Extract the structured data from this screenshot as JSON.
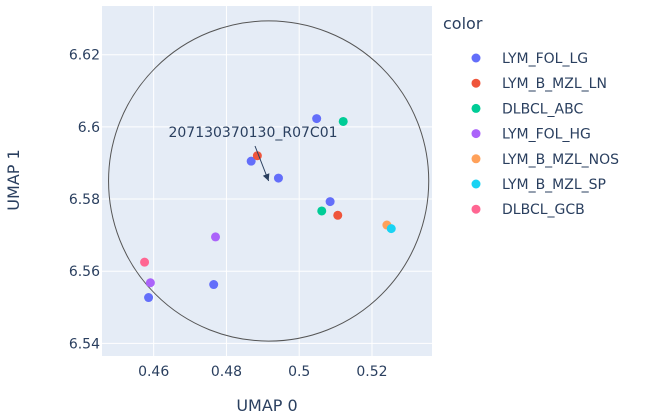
{
  "chart_data": {
    "type": "scatter",
    "xlabel": "UMAP 0",
    "ylabel": "UMAP 1",
    "xlim": [
      0.4458,
      0.5365
    ],
    "ylim": [
      6.5365,
      6.6335
    ],
    "xticks": [
      0.46,
      0.48,
      0.5,
      0.52
    ],
    "xtick_labels": [
      "0.46",
      "0.48",
      "0.5",
      "0.52"
    ],
    "yticks": [
      6.54,
      6.56,
      6.58,
      6.6,
      6.62
    ],
    "ytick_labels": [
      "6.54",
      "6.56",
      "6.58",
      "6.6",
      "6.62"
    ],
    "grid": true,
    "legend_title": "color",
    "legend_position": "right",
    "series": [
      {
        "name": "LYM_FOL_LG",
        "color": "#636efa",
        "points": [
          [
            0.4868,
            6.5905
          ],
          [
            0.4943,
            6.5858
          ],
          [
            0.5048,
            6.6023
          ],
          [
            0.5085,
            6.5793
          ],
          [
            0.4765,
            6.5563
          ],
          [
            0.4586,
            6.5527
          ]
        ]
      },
      {
        "name": "LYM_B_MZL_LN",
        "color": "#EF553B",
        "points": [
          [
            0.4885,
            6.592
          ],
          [
            0.5106,
            6.5755
          ]
        ]
      },
      {
        "name": "DLBCL_ABC",
        "color": "#00cc96",
        "points": [
          [
            0.5121,
            6.6015
          ],
          [
            0.5062,
            6.5767
          ]
        ]
      },
      {
        "name": "LYM_FOL_HG",
        "color": "#ab63fa",
        "points": [
          [
            0.477,
            6.5695
          ],
          [
            0.4591,
            6.5568
          ]
        ]
      },
      {
        "name": "LYM_B_MZL_NOS",
        "color": "#FFA15A",
        "points": [
          [
            0.5241,
            6.5728
          ]
        ]
      },
      {
        "name": "LYM_B_MZL_SP",
        "color": "#19d3f3",
        "points": [
          [
            0.5253,
            6.5718
          ]
        ]
      },
      {
        "name": "DLBCL_GCB",
        "color": "#FF6692",
        "points": [
          [
            0.4575,
            6.5625
          ]
        ]
      }
    ],
    "annotation": {
      "text": "207130370130_R07C01",
      "point": [
        0.4916,
        6.585
      ]
    },
    "circle": {
      "center": [
        0.4916,
        6.585
      ],
      "radius_x": 0.044
    }
  }
}
